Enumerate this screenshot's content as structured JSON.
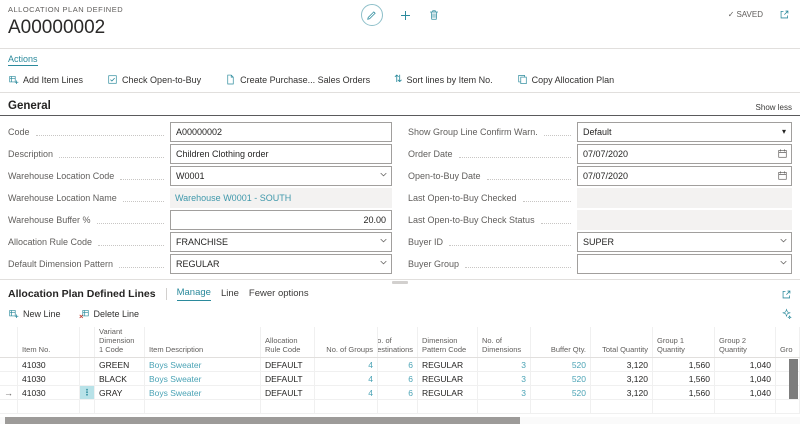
{
  "colors": {
    "accent": "#2b8a9c",
    "link": "#4aa3b5",
    "label_gray": "#605e5c",
    "row_highlight": "#b8e2e8"
  },
  "header": {
    "caption": "ALLOCATION PLAN DEFINED",
    "title": "A00000002",
    "saved": "SAVED"
  },
  "actions": {
    "menu": "Actions",
    "items": [
      {
        "label": "Add Item Lines",
        "icon": "add-item-lines-icon"
      },
      {
        "label": "Check Open-to-Buy",
        "icon": "check-open-to-buy-icon"
      },
      {
        "label": "Create Purchase... Sales Orders",
        "icon": "create-purchase-sales-orders-icon"
      },
      {
        "label": "Sort lines by Item No.",
        "icon": "sort-lines-icon"
      },
      {
        "label": "Copy Allocation Plan",
        "icon": "copy-allocation-plan-icon"
      }
    ]
  },
  "general": {
    "heading": "General",
    "show_less": "Show less",
    "left_fields": [
      {
        "label": "Code",
        "value": "A00000002",
        "type": "text"
      },
      {
        "label": "Description",
        "value": "Children Clothing order",
        "type": "text"
      },
      {
        "label": "Warehouse Location Code",
        "value": "W0001",
        "type": "dropdown"
      },
      {
        "label": "Warehouse Location Name",
        "value": "Warehouse W0001 - SOUTH",
        "type": "disabled-link"
      },
      {
        "label": "Warehouse Buffer %",
        "value": "20.00",
        "type": "number"
      },
      {
        "label": "Allocation Rule Code",
        "value": "FRANCHISE",
        "type": "dropdown"
      },
      {
        "label": "Default Dimension Pattern",
        "value": "REGULAR",
        "type": "dropdown"
      }
    ],
    "right_fields": [
      {
        "label": "Show Group Line Confirm Warn.",
        "value": "Default",
        "type": "select"
      },
      {
        "label": "Order Date",
        "value": "07/07/2020",
        "type": "date"
      },
      {
        "label": "Open-to-Buy Date",
        "value": "07/07/2020",
        "type": "date"
      },
      {
        "label": "Last Open-to-Buy Checked",
        "value": "",
        "type": "disabled"
      },
      {
        "label": "Last Open-to-Buy Check Status",
        "value": "",
        "type": "disabled"
      },
      {
        "label": "Buyer ID",
        "value": "SUPER",
        "type": "dropdown"
      },
      {
        "label": "Buyer Group",
        "value": "",
        "type": "dropdown"
      }
    ]
  },
  "lines": {
    "heading": "Allocation Plan Defined Lines",
    "tabs": [
      {
        "label": "Manage",
        "active": true
      },
      {
        "label": "Line",
        "active": false
      },
      {
        "label": "Fewer options",
        "active": false
      }
    ],
    "toolbar": [
      {
        "label": "New Line",
        "icon": "new-line-icon"
      },
      {
        "label": "Delete Line",
        "icon": "delete-line-icon"
      }
    ],
    "table": {
      "columns": [
        {
          "key": "item_no",
          "label": "Item No."
        },
        {
          "key": "menu",
          "label": ""
        },
        {
          "key": "variant",
          "label": "Variant Dimension 1 Code"
        },
        {
          "key": "desc",
          "label": "Item Description"
        },
        {
          "key": "rule",
          "label": "Allocation Rule Code"
        },
        {
          "key": "groups",
          "label": "No. of Groups"
        },
        {
          "key": "dest",
          "label": "No. of Destinations"
        },
        {
          "key": "dimpat",
          "label": "Dimension Pattern Code"
        },
        {
          "key": "dims",
          "label": "No. of Dimensions"
        },
        {
          "key": "buffer",
          "label": "Buffer Qty."
        },
        {
          "key": "total",
          "label": "Total Quantity"
        },
        {
          "key": "g1",
          "label": "Group 1 Quantity"
        },
        {
          "key": "g2",
          "label": "Group 2 Quantity"
        },
        {
          "key": "g3",
          "label": "Gro"
        }
      ],
      "rows": [
        {
          "current": false,
          "item_no": "41030",
          "variant": "GREEN",
          "desc": "Boys Sweater",
          "rule": "DEFAULT",
          "groups": "4",
          "dest": "6",
          "dimpat": "REGULAR",
          "dims": "3",
          "buffer": "520",
          "total": "3,120",
          "g1": "1,560",
          "g2": "1,040",
          "g3": ""
        },
        {
          "current": false,
          "item_no": "41030",
          "variant": "BLACK",
          "desc": "Boys Sweater",
          "rule": "DEFAULT",
          "groups": "4",
          "dest": "6",
          "dimpat": "REGULAR",
          "dims": "3",
          "buffer": "520",
          "total": "3,120",
          "g1": "1,560",
          "g2": "1,040",
          "g3": ""
        },
        {
          "current": true,
          "item_no": "41030",
          "variant": "GRAY",
          "desc": "Boys Sweater",
          "rule": "DEFAULT",
          "groups": "4",
          "dest": "6",
          "dimpat": "REGULAR",
          "dims": "3",
          "buffer": "520",
          "total": "3,120",
          "g1": "1,560",
          "g2": "1,040",
          "g3": ""
        }
      ]
    }
  }
}
